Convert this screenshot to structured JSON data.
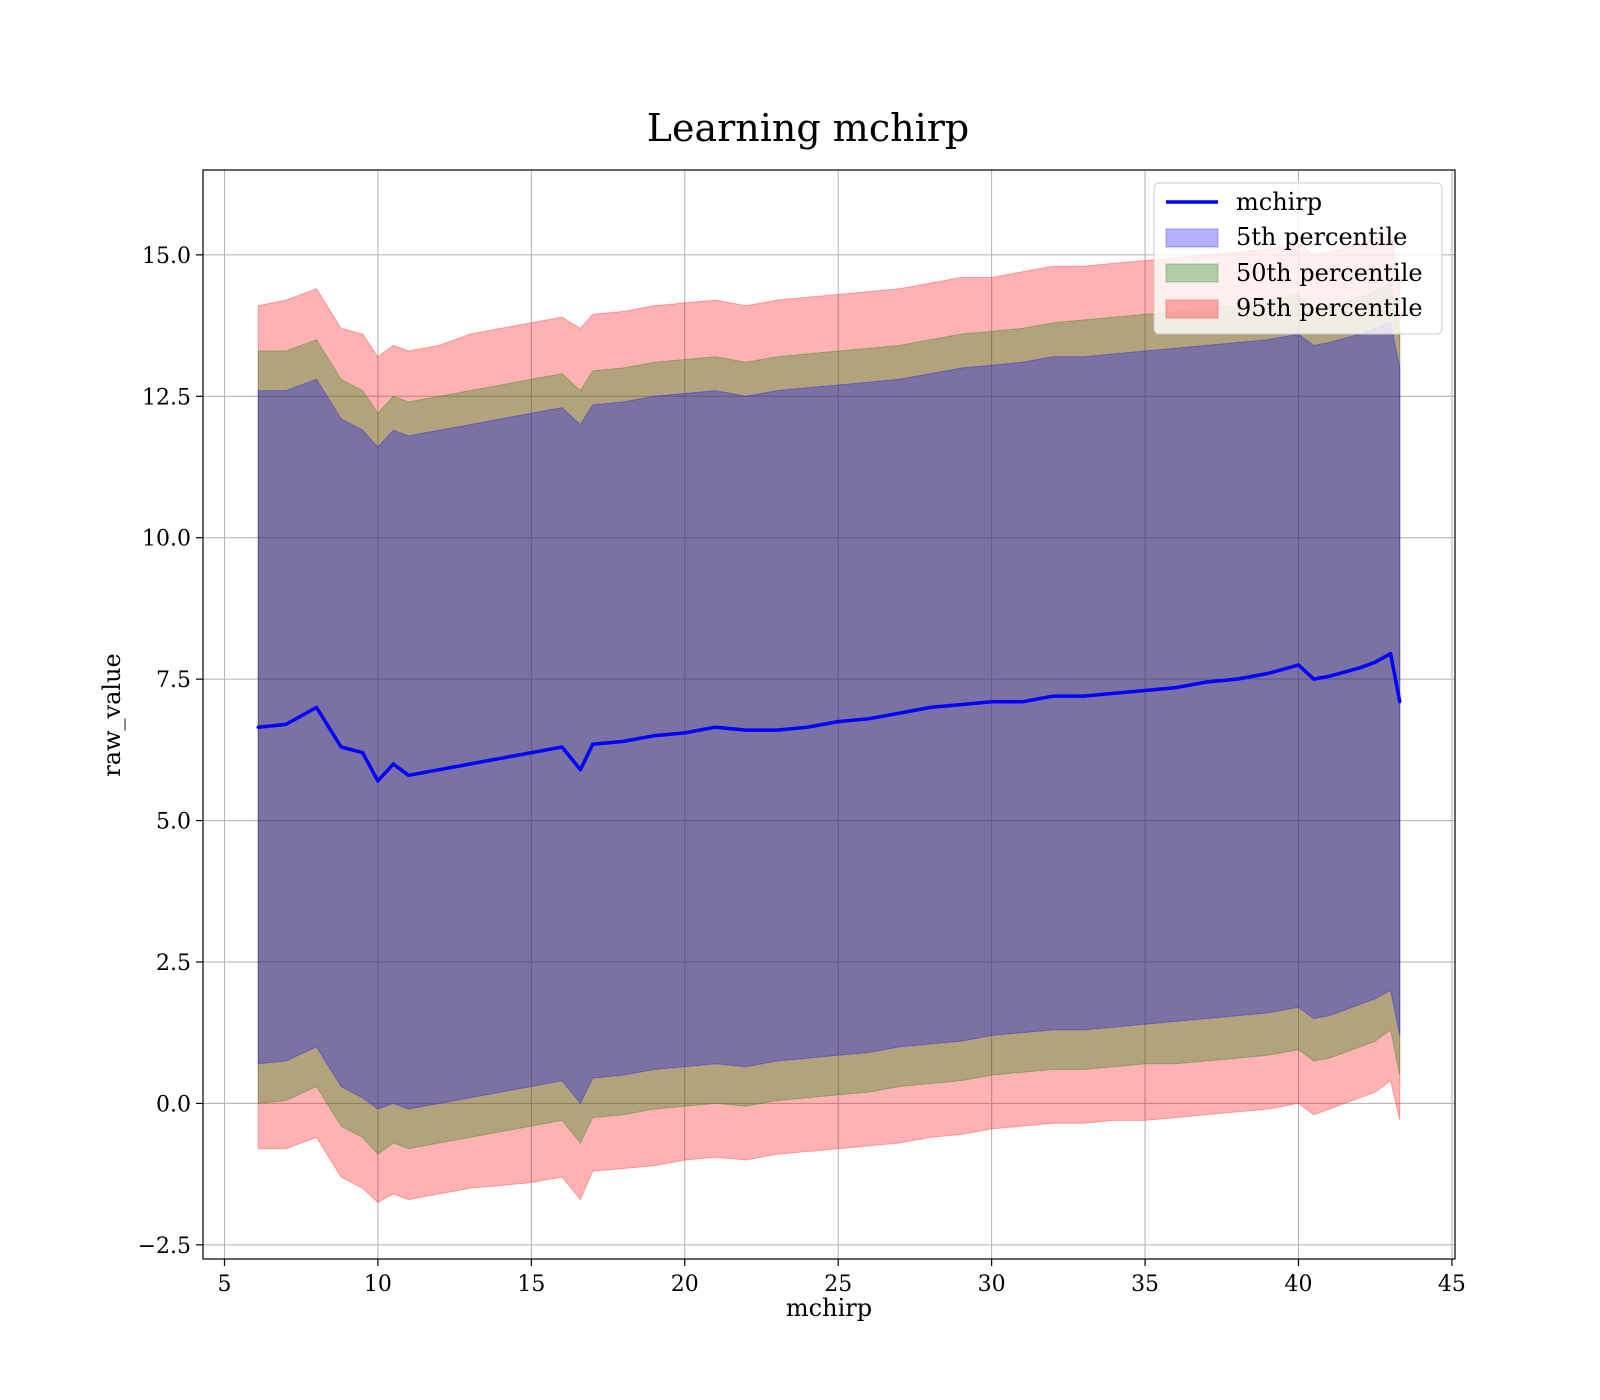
{
  "chart_data": {
    "type": "area",
    "title": "Learning mchirp",
    "xlabel": "mchirp",
    "ylabel": "raw_value",
    "xlim": [
      4.3,
      45.1
    ],
    "ylim": [
      -2.75,
      16.5
    ],
    "xticks": [
      5,
      10,
      15,
      20,
      25,
      30,
      35,
      40,
      45
    ],
    "xtick_labels": [
      "5",
      "10",
      "15",
      "20",
      "25",
      "30",
      "35",
      "40",
      "45"
    ],
    "yticks": [
      -2.5,
      0.0,
      2.5,
      5.0,
      7.5,
      10.0,
      12.5,
      15.0
    ],
    "ytick_labels": [
      "−2.5",
      "0.0",
      "2.5",
      "5.0",
      "7.5",
      "10.0",
      "12.5",
      "15.0"
    ],
    "grid": true,
    "legend_position": "top-right",
    "legend": [
      "mchirp",
      "5th percentile",
      "50th percentile",
      "95th percentile"
    ],
    "x": [
      6.1,
      7.0,
      8.0,
      8.8,
      9.5,
      10.0,
      10.5,
      11.0,
      12.0,
      13.0,
      14.0,
      15.0,
      16.0,
      16.6,
      17.0,
      18.0,
      19.0,
      20.0,
      21.0,
      22.0,
      23.0,
      24.0,
      25.0,
      26.0,
      27.0,
      28.0,
      29.0,
      30.0,
      31.0,
      32.0,
      33.0,
      34.0,
      35.0,
      36.0,
      37.0,
      38.0,
      39.0,
      40.0,
      40.5,
      41.0,
      42.0,
      42.5,
      43.0,
      43.3
    ],
    "series": [
      {
        "name": "mchirp",
        "kind": "line",
        "color": "#0000ff",
        "values": [
          6.65,
          6.7,
          7.0,
          6.3,
          6.2,
          5.7,
          6.0,
          5.8,
          5.9,
          6.0,
          6.1,
          6.2,
          6.3,
          5.9,
          6.35,
          6.4,
          6.5,
          6.55,
          6.65,
          6.6,
          6.6,
          6.65,
          6.75,
          6.8,
          6.9,
          7.0,
          7.05,
          7.1,
          7.1,
          7.2,
          7.2,
          7.25,
          7.3,
          7.35,
          7.45,
          7.5,
          7.6,
          7.75,
          7.5,
          7.55,
          7.7,
          7.8,
          7.95,
          7.1
        ]
      },
      {
        "name": "95th percentile",
        "kind": "band",
        "color": "#ff0000",
        "upper": [
          14.1,
          14.2,
          14.4,
          13.7,
          13.6,
          13.2,
          13.4,
          13.3,
          13.4,
          13.6,
          13.7,
          13.8,
          13.9,
          13.7,
          13.95,
          14.0,
          14.1,
          14.15,
          14.2,
          14.1,
          14.2,
          14.25,
          14.3,
          14.35,
          14.4,
          14.5,
          14.6,
          14.6,
          14.7,
          14.8,
          14.8,
          14.85,
          14.9,
          14.95,
          15.0,
          15.05,
          15.1,
          15.2,
          15.0,
          15.05,
          15.2,
          15.3,
          15.4,
          14.6
        ],
        "lower": [
          -0.8,
          -0.8,
          -0.6,
          -1.3,
          -1.5,
          -1.75,
          -1.6,
          -1.7,
          -1.6,
          -1.5,
          -1.45,
          -1.4,
          -1.3,
          -1.7,
          -1.2,
          -1.15,
          -1.1,
          -1.0,
          -0.95,
          -1.0,
          -0.9,
          -0.85,
          -0.8,
          -0.75,
          -0.7,
          -0.6,
          -0.55,
          -0.45,
          -0.4,
          -0.35,
          -0.35,
          -0.3,
          -0.3,
          -0.25,
          -0.2,
          -0.15,
          -0.1,
          0.0,
          -0.2,
          -0.1,
          0.1,
          0.2,
          0.4,
          -0.3
        ]
      },
      {
        "name": "50th percentile",
        "kind": "band",
        "color": "#008000",
        "upper": [
          13.3,
          13.3,
          13.5,
          12.8,
          12.6,
          12.2,
          12.5,
          12.4,
          12.5,
          12.6,
          12.7,
          12.8,
          12.9,
          12.6,
          12.95,
          13.0,
          13.1,
          13.15,
          13.2,
          13.1,
          13.2,
          13.25,
          13.3,
          13.35,
          13.4,
          13.5,
          13.6,
          13.65,
          13.7,
          13.8,
          13.85,
          13.9,
          13.95,
          14.0,
          14.05,
          14.1,
          14.2,
          14.3,
          14.05,
          14.1,
          14.25,
          14.35,
          14.5,
          13.6
        ],
        "lower": [
          0.0,
          0.05,
          0.3,
          -0.4,
          -0.6,
          -0.9,
          -0.7,
          -0.8,
          -0.7,
          -0.6,
          -0.5,
          -0.4,
          -0.3,
          -0.7,
          -0.25,
          -0.2,
          -0.1,
          -0.05,
          0.0,
          -0.05,
          0.05,
          0.1,
          0.15,
          0.2,
          0.3,
          0.35,
          0.4,
          0.5,
          0.55,
          0.6,
          0.6,
          0.65,
          0.7,
          0.7,
          0.75,
          0.8,
          0.85,
          0.95,
          0.75,
          0.8,
          1.0,
          1.1,
          1.3,
          0.5
        ]
      },
      {
        "name": "5th percentile",
        "kind": "band",
        "color": "#0000ff",
        "upper": [
          12.6,
          12.6,
          12.8,
          12.1,
          11.9,
          11.6,
          11.9,
          11.8,
          11.9,
          12.0,
          12.1,
          12.2,
          12.3,
          12.0,
          12.35,
          12.4,
          12.5,
          12.55,
          12.6,
          12.5,
          12.6,
          12.65,
          12.7,
          12.75,
          12.8,
          12.9,
          13.0,
          13.05,
          13.1,
          13.2,
          13.2,
          13.25,
          13.3,
          13.35,
          13.4,
          13.45,
          13.5,
          13.6,
          13.4,
          13.45,
          13.6,
          13.7,
          13.8,
          13.0
        ],
        "lower": [
          0.7,
          0.75,
          1.0,
          0.3,
          0.1,
          -0.1,
          0.0,
          -0.1,
          0.0,
          0.1,
          0.2,
          0.3,
          0.4,
          0.0,
          0.45,
          0.5,
          0.6,
          0.65,
          0.7,
          0.65,
          0.75,
          0.8,
          0.85,
          0.9,
          1.0,
          1.05,
          1.1,
          1.2,
          1.25,
          1.3,
          1.3,
          1.35,
          1.4,
          1.45,
          1.5,
          1.55,
          1.6,
          1.7,
          1.5,
          1.55,
          1.75,
          1.85,
          2.0,
          1.2
        ]
      }
    ]
  }
}
